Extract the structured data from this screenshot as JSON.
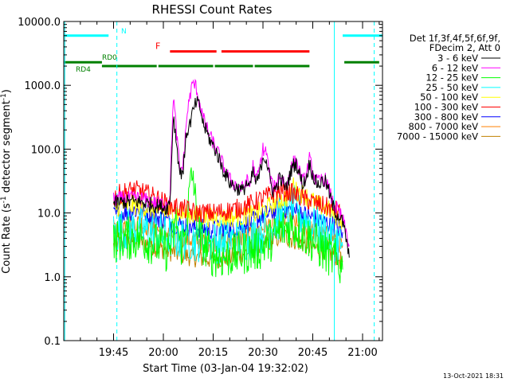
{
  "chart_data": {
    "type": "line",
    "title": "RHESSI Count Rates",
    "xlabel": "Start Time (03-Jan-04 19:32:02)",
    "ylabel_main": "Count Rate (s",
    "ylabel_sup1": "-1",
    "ylabel_mid": " detector segment",
    "ylabel_sup2": "-1",
    "ylabel_end": ")",
    "yscale": "log",
    "ylim": [
      0.1,
      10000
    ],
    "xlim_minutes": [
      32,
      128
    ],
    "x_ticks": [
      {
        "m": 47,
        "label": "19:45"
      },
      {
        "m": 62,
        "label": "20:00"
      },
      {
        "m": 77,
        "label": "20:15"
      },
      {
        "m": 92,
        "label": "20:30"
      },
      {
        "m": 107,
        "label": "20:45"
      },
      {
        "m": 122,
        "label": "21:00"
      }
    ],
    "y_ticks": [
      {
        "v": 0.1,
        "label": "0.1"
      },
      {
        "v": 1,
        "label": "1.0"
      },
      {
        "v": 10,
        "label": "10.0"
      },
      {
        "v": 100,
        "label": "100.0"
      },
      {
        "v": 1000,
        "label": "1000.0"
      },
      {
        "v": 10000,
        "label": "10000.0"
      }
    ],
    "legend_header": [
      "Det 1f,3f,4f,5f,6f,9f,",
      "FDecim 2, Att 0"
    ],
    "series": [
      {
        "name": "3 - 6 keV",
        "color": "#000000",
        "points": [
          [
            47,
            14
          ],
          [
            50,
            15
          ],
          [
            55,
            15
          ],
          [
            60,
            13
          ],
          [
            63,
            12
          ],
          [
            64,
            15
          ],
          [
            65,
            350
          ],
          [
            66,
            120
          ],
          [
            67,
            40
          ],
          [
            68,
            50
          ],
          [
            69,
            180
          ],
          [
            70,
            250
          ],
          [
            71,
            400
          ],
          [
            72,
            550
          ],
          [
            73,
            450
          ],
          [
            74,
            250
          ],
          [
            76,
            140
          ],
          [
            78,
            90
          ],
          [
            80,
            48
          ],
          [
            82,
            30
          ],
          [
            84,
            25
          ],
          [
            86,
            22
          ],
          [
            87,
            30
          ],
          [
            88,
            24
          ],
          [
            89,
            45
          ],
          [
            90,
            28
          ],
          [
            91,
            40
          ],
          [
            92,
            80
          ],
          [
            93,
            70
          ],
          [
            94,
            35
          ],
          [
            95,
            22
          ],
          [
            96,
            25
          ],
          [
            97,
            35
          ],
          [
            98,
            30
          ],
          [
            99,
            24
          ],
          [
            100,
            38
          ],
          [
            101,
            55
          ],
          [
            102,
            60
          ],
          [
            103,
            40
          ],
          [
            104,
            28
          ],
          [
            105,
            35
          ],
          [
            106,
            60
          ],
          [
            107,
            40
          ],
          [
            108,
            30
          ],
          [
            109,
            28
          ],
          [
            110,
            32
          ],
          [
            111,
            30
          ],
          [
            112,
            20
          ],
          [
            113,
            13
          ],
          [
            114,
            10
          ],
          [
            115,
            9
          ],
          [
            116,
            7
          ],
          [
            117,
            4
          ],
          [
            118,
            2
          ]
        ]
      },
      {
        "name": "6 - 12 keV",
        "color": "#ff00ff",
        "points": [
          [
            47,
            16
          ],
          [
            50,
            17
          ],
          [
            55,
            17
          ],
          [
            60,
            14
          ],
          [
            63,
            14
          ],
          [
            64,
            20
          ],
          [
            65,
            700
          ],
          [
            66,
            170
          ],
          [
            67,
            45
          ],
          [
            68,
            60
          ],
          [
            69,
            300
          ],
          [
            70,
            700
          ],
          [
            71,
            1100
          ],
          [
            72,
            900
          ],
          [
            73,
            500
          ],
          [
            74,
            300
          ],
          [
            76,
            160
          ],
          [
            78,
            100
          ],
          [
            80,
            55
          ],
          [
            82,
            33
          ],
          [
            84,
            27
          ],
          [
            86,
            24
          ],
          [
            87,
            33
          ],
          [
            88,
            26
          ],
          [
            89,
            55
          ],
          [
            90,
            32
          ],
          [
            91,
            50
          ],
          [
            92,
            100
          ],
          [
            93,
            90
          ],
          [
            94,
            40
          ],
          [
            95,
            24
          ],
          [
            96,
            28
          ],
          [
            97,
            40
          ],
          [
            98,
            34
          ],
          [
            99,
            26
          ],
          [
            100,
            42
          ],
          [
            101,
            60
          ],
          [
            102,
            65
          ],
          [
            103,
            44
          ],
          [
            104,
            30
          ],
          [
            105,
            38
          ],
          [
            106,
            70
          ],
          [
            107,
            44
          ],
          [
            108,
            32
          ],
          [
            109,
            30
          ],
          [
            110,
            36
          ],
          [
            111,
            32
          ],
          [
            112,
            22
          ],
          [
            113,
            15
          ],
          [
            114,
            12
          ],
          [
            115,
            10
          ],
          [
            116,
            8
          ],
          [
            117,
            5
          ],
          [
            118,
            3
          ]
        ]
      },
      {
        "name": "12 - 25 keV",
        "color": "#00ff00",
        "points": [
          [
            47,
            3.5
          ],
          [
            50,
            4
          ],
          [
            55,
            4
          ],
          [
            60,
            3.2
          ],
          [
            63,
            2.6
          ],
          [
            64,
            3
          ],
          [
            65,
            4
          ],
          [
            66,
            8
          ],
          [
            67,
            3
          ],
          [
            68,
            3.5
          ],
          [
            69,
            6
          ],
          [
            70,
            25
          ],
          [
            71,
            40
          ],
          [
            72,
            8
          ],
          [
            73,
            4
          ],
          [
            76,
            2.3
          ],
          [
            80,
            2
          ],
          [
            84,
            2.2
          ],
          [
            88,
            2.5
          ],
          [
            90,
            2.6
          ],
          [
            92,
            3
          ],
          [
            96,
            4.5
          ],
          [
            98,
            5.5
          ],
          [
            100,
            6.2
          ],
          [
            102,
            5.8
          ],
          [
            104,
            4.8
          ],
          [
            106,
            4
          ],
          [
            108,
            3.2
          ],
          [
            110,
            2.6
          ],
          [
            112,
            2.2
          ],
          [
            114,
            1.8
          ],
          [
            116,
            1.3
          ]
        ]
      },
      {
        "name": "25 - 50 keV",
        "color": "#00ffff",
        "points": [
          [
            47,
            5
          ],
          [
            50,
            5.5
          ],
          [
            55,
            5.6
          ],
          [
            60,
            4.8
          ],
          [
            64,
            4.2
          ],
          [
            68,
            4
          ],
          [
            72,
            3.8
          ],
          [
            76,
            3.5
          ],
          [
            80,
            3.6
          ],
          [
            84,
            3.7
          ],
          [
            88,
            4
          ],
          [
            92,
            5
          ],
          [
            96,
            7.5
          ],
          [
            100,
            10
          ],
          [
            101,
            14
          ],
          [
            102,
            10
          ],
          [
            104,
            8.5
          ],
          [
            108,
            6
          ],
          [
            112,
            4.5
          ],
          [
            114,
            3.8
          ],
          [
            116,
            3
          ]
        ]
      },
      {
        "name": "50 - 100 keV",
        "color": "#ffff00",
        "points": [
          [
            47,
            12
          ],
          [
            50,
            13
          ],
          [
            55,
            13
          ],
          [
            60,
            11
          ],
          [
            64,
            10
          ],
          [
            68,
            9.6
          ],
          [
            72,
            9
          ],
          [
            76,
            8.5
          ],
          [
            80,
            8.5
          ],
          [
            84,
            8.6
          ],
          [
            88,
            9
          ],
          [
            92,
            11
          ],
          [
            96,
            15
          ],
          [
            100,
            18
          ],
          [
            101,
            30
          ],
          [
            102,
            22
          ],
          [
            104,
            20
          ],
          [
            108,
            14
          ],
          [
            112,
            11
          ],
          [
            114,
            9
          ],
          [
            116,
            7.5
          ]
        ]
      },
      {
        "name": "100 - 300 keV",
        "color": "#ff0000",
        "points": [
          [
            47,
            18
          ],
          [
            50,
            21
          ],
          [
            53,
            23
          ],
          [
            55,
            22
          ],
          [
            58,
            19
          ],
          [
            60,
            17
          ],
          [
            64,
            13
          ],
          [
            68,
            11.5
          ],
          [
            72,
            10
          ],
          [
            76,
            10
          ],
          [
            80,
            10.5
          ],
          [
            84,
            11.5
          ],
          [
            88,
            13.5
          ],
          [
            92,
            17
          ],
          [
            96,
            21
          ],
          [
            98,
            22
          ],
          [
            100,
            21
          ],
          [
            102,
            19
          ],
          [
            104,
            17
          ],
          [
            108,
            14
          ],
          [
            112,
            12
          ],
          [
            114,
            11
          ],
          [
            116,
            9
          ]
        ]
      },
      {
        "name": "300 - 800 keV",
        "color": "#0000ff",
        "points": [
          [
            47,
            9
          ],
          [
            50,
            10
          ],
          [
            53,
            11
          ],
          [
            55,
            11
          ],
          [
            58,
            9.5
          ],
          [
            60,
            8.6
          ],
          [
            64,
            7.2
          ],
          [
            68,
            6.4
          ],
          [
            72,
            5.8
          ],
          [
            76,
            5.5
          ],
          [
            80,
            5.6
          ],
          [
            84,
            6
          ],
          [
            88,
            7
          ],
          [
            92,
            9
          ],
          [
            96,
            11
          ],
          [
            98,
            12
          ],
          [
            100,
            11.5
          ],
          [
            102,
            10.5
          ],
          [
            104,
            9.6
          ],
          [
            108,
            8
          ],
          [
            112,
            6.8
          ],
          [
            114,
            6.2
          ],
          [
            116,
            5
          ]
        ]
      },
      {
        "name": "800 - 7000 keV",
        "color": "#ff8000",
        "points": [
          [
            47,
            5.5
          ],
          [
            50,
            6.5
          ],
          [
            53,
            7
          ],
          [
            55,
            7
          ],
          [
            58,
            6
          ],
          [
            60,
            5.5
          ],
          [
            64,
            4.6
          ],
          [
            68,
            4
          ],
          [
            72,
            3.7
          ],
          [
            76,
            3.5
          ],
          [
            80,
            3.6
          ],
          [
            84,
            3.9
          ],
          [
            88,
            4.6
          ],
          [
            92,
            5.8
          ],
          [
            96,
            7.2
          ],
          [
            98,
            7.8
          ],
          [
            100,
            7.4
          ],
          [
            102,
            6.6
          ],
          [
            104,
            6
          ],
          [
            108,
            5
          ],
          [
            112,
            4.2
          ],
          [
            114,
            3.8
          ],
          [
            116,
            3
          ]
        ]
      },
      {
        "name": "7000 - 15000 keV",
        "color": "#c08000",
        "points": [
          [
            47,
            3
          ],
          [
            50,
            3.5
          ],
          [
            53,
            3.8
          ],
          [
            55,
            3.7
          ],
          [
            58,
            3.2
          ],
          [
            60,
            2.9
          ],
          [
            64,
            2.5
          ],
          [
            68,
            2.2
          ],
          [
            72,
            2
          ],
          [
            76,
            1.9
          ],
          [
            80,
            1.95
          ],
          [
            84,
            2.1
          ],
          [
            88,
            2.5
          ],
          [
            92,
            3.2
          ],
          [
            96,
            4
          ],
          [
            98,
            4.3
          ],
          [
            100,
            4.1
          ],
          [
            102,
            3.7
          ],
          [
            104,
            3.3
          ],
          [
            108,
            2.8
          ],
          [
            112,
            2.4
          ],
          [
            114,
            2.1
          ],
          [
            116,
            1.7
          ]
        ]
      }
    ],
    "state_bars": {
      "N": {
        "label": "N",
        "color": "#00ffff",
        "level": 6000,
        "segments": [
          [
            32,
            45.5
          ],
          [
            116,
            128
          ]
        ]
      },
      "F": {
        "label": "F",
        "color": "#ff0000",
        "level": 3400,
        "segments": [
          [
            64,
            78
          ],
          [
            79.5,
            106
          ]
        ]
      },
      "RD0": {
        "label": "RD0",
        "color": "#008000",
        "level": 2300,
        "segments": [
          [
            32,
            43.5
          ],
          [
            116.5,
            127
          ]
        ]
      },
      "RD4": {
        "label": "RD4",
        "color": "#008000",
        "level": 2000,
        "segments": [
          [
            43.5,
            60
          ],
          [
            60.5,
            77
          ],
          [
            77.5,
            89
          ],
          [
            89.5,
            106
          ]
        ]
      }
    },
    "markers": [
      {
        "m": 32.3,
        "style": "solid",
        "color": "#00ffff"
      },
      {
        "m": 48,
        "style": "dashed",
        "color": "#00ffff"
      },
      {
        "m": 113.5,
        "style": "solid",
        "color": "#00ffff"
      },
      {
        "m": 125.5,
        "style": "dashed",
        "color": "#00ffff"
      }
    ],
    "grid": false,
    "legend_position": "right"
  },
  "footer_date": "13-Oct-2021 18:31"
}
